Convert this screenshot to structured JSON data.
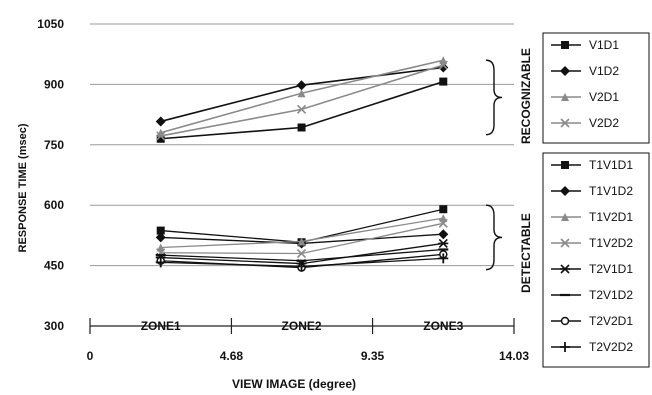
{
  "chart_data": {
    "type": "line",
    "title": "",
    "xlabel": "VIEW IMAGE (degree)",
    "ylabel": "RESPONSE TIME (msec)",
    "ylim": [
      300,
      1050
    ],
    "xlim": [
      0,
      14.03
    ],
    "y_ticks": [
      300,
      450,
      600,
      750,
      900,
      1050
    ],
    "x_ticks": [
      0,
      4.68,
      9.35,
      14.03
    ],
    "x_tick_labels": [
      "0",
      "4.68",
      "9.35",
      "14.03"
    ],
    "zones": [
      "ZONE1",
      "ZONE2",
      "ZONE3"
    ],
    "zone_x": [
      2.34,
      7.0,
      11.69
    ],
    "grid": true,
    "legend_placement": "right",
    "group_labels": [
      "RECOGNIZABLE",
      "DETECTABLE"
    ],
    "series": [
      {
        "name": "V1D1",
        "group": "recognizable",
        "marker": "square",
        "x": [
          2.34,
          7.0,
          11.69
        ],
        "values": [
          765,
          793,
          907
        ]
      },
      {
        "name": "V1D2",
        "group": "recognizable",
        "marker": "diamond",
        "x": [
          2.34,
          7.0,
          11.69
        ],
        "values": [
          808,
          898,
          942
        ]
      },
      {
        "name": "V2D1",
        "group": "recognizable",
        "marker": "triangle",
        "x": [
          2.34,
          7.0,
          11.69
        ],
        "values": [
          780,
          878,
          960
        ]
      },
      {
        "name": "V2D2",
        "group": "recognizable",
        "marker": "x",
        "x": [
          2.34,
          7.0,
          11.69
        ],
        "values": [
          772,
          838,
          948
        ]
      },
      {
        "name": "T1V1D1",
        "group": "detectable",
        "marker": "square",
        "x": [
          2.34,
          7.0,
          11.69
        ],
        "values": [
          537,
          508,
          590
        ]
      },
      {
        "name": "T1V1D2",
        "group": "detectable",
        "marker": "diamond",
        "x": [
          2.34,
          7.0,
          11.69
        ],
        "values": [
          520,
          505,
          528
        ]
      },
      {
        "name": "T1V2D1",
        "group": "detectable",
        "marker": "triangle",
        "x": [
          2.34,
          7.0,
          11.69
        ],
        "values": [
          495,
          510,
          568
        ]
      },
      {
        "name": "T1V2D2",
        "group": "detectable",
        "marker": "x",
        "x": [
          2.34,
          7.0,
          11.69
        ],
        "values": [
          482,
          480,
          555
        ]
      },
      {
        "name": "T2V1D1",
        "group": "detectable",
        "marker": "star",
        "x": [
          2.34,
          7.0,
          11.69
        ],
        "values": [
          470,
          455,
          505
        ]
      },
      {
        "name": "T2V1D2",
        "group": "detectable",
        "marker": "dash",
        "x": [
          2.34,
          7.0,
          11.69
        ],
        "values": [
          476,
          462,
          490
        ]
      },
      {
        "name": "T2V2D1",
        "group": "detectable",
        "marker": "circle",
        "x": [
          2.34,
          7.0,
          11.69
        ],
        "values": [
          462,
          445,
          478
        ]
      },
      {
        "name": "T2V2D2",
        "group": "detectable",
        "marker": "plus",
        "x": [
          2.34,
          7.0,
          11.69
        ],
        "values": [
          458,
          448,
          468
        ]
      }
    ]
  }
}
